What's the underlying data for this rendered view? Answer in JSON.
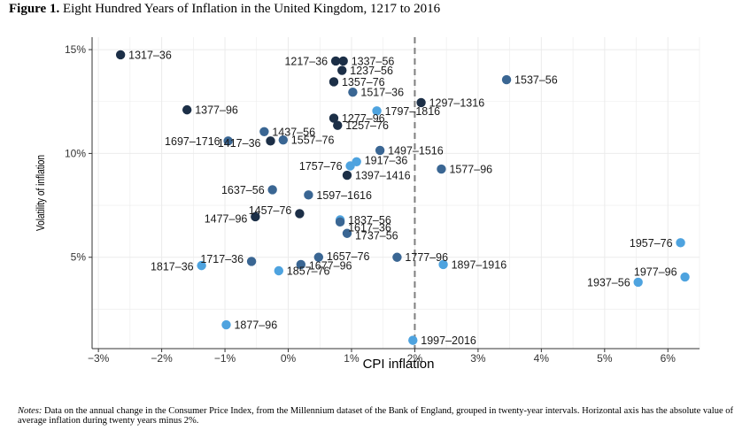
{
  "figure": {
    "title_prefix": "Figure 1.",
    "title_text": "Eight Hundred Years of Inflation in the United Kingdom, 1217 to 2016",
    "notes_prefix": "Notes:",
    "notes_text": "Data on the annual change in the Consumer Price Index, from the Millennium dataset of the Bank of England, grouped in twenty-year intervals. Horizontal axis has the absolute value of average inflation during twenty years minus 2%."
  },
  "colors": {
    "dark": "#1c2f47",
    "mid": "#3a6693",
    "light": "#4ea3df",
    "grid": "#ebebeb",
    "refline": "#7f7f7f"
  },
  "chart_data": {
    "type": "scatter",
    "title": "",
    "xlabel": "CPI inflation",
    "ylabel": "Volatility of inflation",
    "xlim": [
      -3.1,
      6.5
    ],
    "ylim": [
      0.6,
      15.6
    ],
    "x_ticks": [
      -3,
      -2,
      -1,
      0,
      1,
      2,
      3,
      4,
      5,
      6
    ],
    "x_tick_labels": [
      "−3%",
      "−2%",
      "−1%",
      "0%",
      "1%",
      "2%",
      "3%",
      "4%",
      "5%",
      "6%"
    ],
    "y_ticks": [
      5,
      10,
      15
    ],
    "y_tick_labels": [
      "5%",
      "10%",
      "15%"
    ],
    "grid": true,
    "reference_line_x": 2,
    "points": [
      {
        "label": "1317–36",
        "x": -2.65,
        "y": 14.75,
        "shade": "dark"
      },
      {
        "label": "1217–36",
        "x": 0.75,
        "y": 14.45,
        "shade": "dark"
      },
      {
        "label": "1337–56",
        "x": 0.87,
        "y": 14.45,
        "shade": "dark"
      },
      {
        "label": "1237–56",
        "x": 0.85,
        "y": 14.0,
        "shade": "dark"
      },
      {
        "label": "1357–76",
        "x": 0.72,
        "y": 13.45,
        "shade": "dark"
      },
      {
        "label": "1537–56",
        "x": 3.45,
        "y": 13.55,
        "shade": "mid"
      },
      {
        "label": "1517–36",
        "x": 1.02,
        "y": 12.95,
        "shade": "mid"
      },
      {
        "label": "1297–1316",
        "x": 2.1,
        "y": 12.45,
        "shade": "dark"
      },
      {
        "label": "1377–96",
        "x": -1.6,
        "y": 12.1,
        "shade": "dark"
      },
      {
        "label": "1797–1816",
        "x": 1.4,
        "y": 12.05,
        "shade": "light"
      },
      {
        "label": "1277–96",
        "x": 0.72,
        "y": 11.7,
        "shade": "dark"
      },
      {
        "label": "1257–76",
        "x": 0.78,
        "y": 11.35,
        "shade": "dark"
      },
      {
        "label": "1437–56",
        "x": -0.38,
        "y": 11.05,
        "shade": "mid"
      },
      {
        "label": "1697–1716",
        "x": -0.95,
        "y": 10.6,
        "shade": "mid"
      },
      {
        "label": "1417–36",
        "x": -0.28,
        "y": 10.6,
        "shade": "dark"
      },
      {
        "label": "1557–76",
        "x": -0.08,
        "y": 10.65,
        "shade": "mid"
      },
      {
        "label": "1497–1516",
        "x": 1.45,
        "y": 10.15,
        "shade": "mid"
      },
      {
        "label": "1917–36",
        "x": 1.08,
        "y": 9.6,
        "shade": "light"
      },
      {
        "label": "1757–76",
        "x": 0.98,
        "y": 9.4,
        "shade": "light"
      },
      {
        "label": "1577–96",
        "x": 2.42,
        "y": 9.25,
        "shade": "mid"
      },
      {
        "label": "1397–1416",
        "x": 0.93,
        "y": 8.95,
        "shade": "dark"
      },
      {
        "label": "1637–56",
        "x": -0.25,
        "y": 8.25,
        "shade": "mid"
      },
      {
        "label": "1597–1616",
        "x": 0.32,
        "y": 8.0,
        "shade": "mid"
      },
      {
        "label": "1457–76",
        "x": 0.18,
        "y": 7.1,
        "shade": "dark"
      },
      {
        "label": "1477–96",
        "x": -0.52,
        "y": 6.95,
        "shade": "dark"
      },
      {
        "label": "1837–56",
        "x": 0.82,
        "y": 6.8,
        "shade": "light"
      },
      {
        "label": "1617–36",
        "x": 0.82,
        "y": 6.7,
        "shade": "mid"
      },
      {
        "label": "1737–56",
        "x": 0.93,
        "y": 6.15,
        "shade": "mid"
      },
      {
        "label": "1957–76",
        "x": 6.2,
        "y": 5.7,
        "shade": "light"
      },
      {
        "label": "1657–76",
        "x": 0.48,
        "y": 5.0,
        "shade": "mid"
      },
      {
        "label": "1777–96",
        "x": 1.72,
        "y": 5.0,
        "shade": "mid"
      },
      {
        "label": "1717–36",
        "x": -0.58,
        "y": 4.8,
        "shade": "mid"
      },
      {
        "label": "1677–96",
        "x": 0.2,
        "y": 4.65,
        "shade": "mid"
      },
      {
        "label": "1817–36",
        "x": -1.37,
        "y": 4.6,
        "shade": "light"
      },
      {
        "label": "1897–1916",
        "x": 2.45,
        "y": 4.65,
        "shade": "light"
      },
      {
        "label": "1857–76",
        "x": -0.15,
        "y": 4.35,
        "shade": "light"
      },
      {
        "label": "1977–96",
        "x": 6.27,
        "y": 4.05,
        "shade": "light"
      },
      {
        "label": "1937–56",
        "x": 5.53,
        "y": 3.8,
        "shade": "light"
      },
      {
        "label": "1877–96",
        "x": -0.98,
        "y": 1.75,
        "shade": "light"
      },
      {
        "label": "1997–2016",
        "x": 1.97,
        "y": 1.0,
        "shade": "light"
      }
    ]
  }
}
